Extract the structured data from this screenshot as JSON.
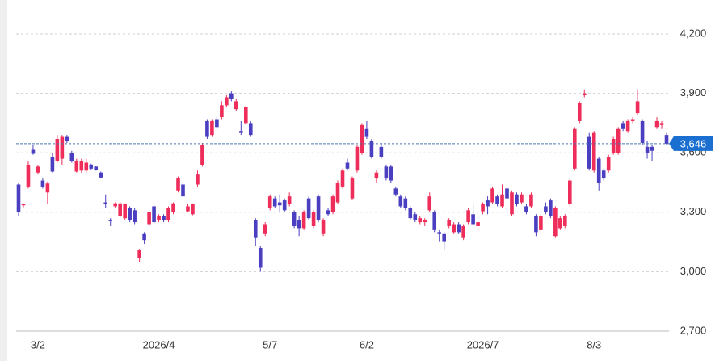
{
  "chart_data": {
    "type": "candlestick",
    "up_color": "#ee2d5a",
    "down_color": "#4a3fc0",
    "ylim": [
      2700,
      4200
    ],
    "yticks": [
      {
        "value": 2700,
        "label": "2,700"
      },
      {
        "value": 3000,
        "label": "3,000"
      },
      {
        "value": 3300,
        "label": "3,300"
      },
      {
        "value": 3600,
        "label": "3,600"
      },
      {
        "value": 3900,
        "label": "3,900"
      },
      {
        "value": 4200,
        "label": "4,200"
      }
    ],
    "grid": true,
    "last_price": {
      "value": 3646,
      "label": "3,646"
    },
    "categories": [
      null,
      null,
      null,
      null,
      "3/2",
      null,
      null,
      null,
      null,
      null,
      null,
      null,
      null,
      null,
      null,
      null,
      null,
      null,
      null,
      null,
      null,
      null,
      null,
      null,
      null,
      null,
      null,
      null,
      null,
      "2026/4",
      null,
      null,
      null,
      null,
      null,
      null,
      null,
      null,
      null,
      null,
      null,
      null,
      null,
      null,
      null,
      null,
      null,
      null,
      null,
      null,
      null,
      null,
      "5/7",
      null,
      null,
      null,
      null,
      null,
      null,
      null,
      null,
      null,
      null,
      null,
      null,
      null,
      null,
      null,
      null,
      null,
      null,
      null,
      "6/2",
      null,
      null,
      null,
      null,
      null,
      null,
      null,
      null,
      null,
      null,
      null,
      null,
      null,
      null,
      null,
      null,
      null,
      null,
      null,
      null,
      null,
      null,
      null,
      "2026/7",
      null,
      null,
      null,
      null,
      null,
      null,
      null,
      null,
      null,
      null,
      null,
      null,
      null,
      null,
      null,
      null,
      null,
      null,
      null,
      null,
      null,
      null,
      "8/3",
      null,
      null,
      null,
      null,
      null,
      null,
      null,
      null,
      null,
      null,
      null,
      null,
      null,
      null,
      null
    ],
    "candles": [
      [
        3440,
        3450,
        3280,
        3300
      ],
      [
        3335,
        3345,
        3325,
        3340
      ],
      [
        3430,
        3560,
        3420,
        3540
      ],
      [
        3615,
        3640,
        3590,
        3595
      ],
      [
        3500,
        3540,
        3490,
        3530
      ],
      [
        3460,
        3470,
        3420,
        3430
      ],
      [
        3400,
        3455,
        3340,
        3445
      ],
      [
        3580,
        3600,
        3500,
        3505
      ],
      [
        3560,
        3690,
        3550,
        3670
      ],
      [
        3570,
        3690,
        3540,
        3680
      ],
      [
        3680,
        3690,
        3650,
        3660
      ],
      [
        3600,
        3610,
        3550,
        3560
      ],
      [
        3505,
        3570,
        3500,
        3560
      ],
      [
        3510,
        3570,
        3500,
        3560
      ],
      [
        3510,
        3570,
        3500,
        3550
      ],
      [
        3540,
        3545,
        3515,
        3520
      ],
      [
        3530,
        3535,
        3510,
        3515
      ],
      [
        3500,
        3505,
        3470,
        3475
      ],
      [
        3350,
        3390,
        3320,
        3340
      ],
      [
        3260,
        3270,
        3230,
        3255
      ],
      [
        3330,
        3350,
        3320,
        3345
      ],
      [
        3280,
        3350,
        3270,
        3345
      ],
      [
        3270,
        3345,
        3260,
        3340
      ],
      [
        3320,
        3330,
        3250,
        3260
      ],
      [
        3310,
        3320,
        3240,
        3250
      ],
      [
        3070,
        3115,
        3050,
        3110
      ],
      [
        3190,
        3200,
        3140,
        3160
      ],
      [
        3240,
        3310,
        3230,
        3300
      ],
      [
        3330,
        3340,
        3240,
        3250
      ],
      [
        3260,
        3290,
        3250,
        3280
      ],
      [
        3280,
        3290,
        3250,
        3260
      ],
      [
        3260,
        3330,
        3250,
        3320
      ],
      [
        3300,
        3350,
        3290,
        3345
      ],
      [
        3410,
        3480,
        3400,
        3470
      ],
      [
        3440,
        3450,
        3370,
        3380
      ],
      [
        3305,
        3340,
        3300,
        3330
      ],
      [
        3290,
        3345,
        3285,
        3340
      ],
      [
        3440,
        3510,
        3430,
        3490
      ],
      [
        3540,
        3650,
        3530,
        3640
      ],
      [
        3760,
        3770,
        3670,
        3680
      ],
      [
        3690,
        3770,
        3680,
        3760
      ],
      [
        3770,
        3780,
        3720,
        3730
      ],
      [
        3780,
        3860,
        3770,
        3840
      ],
      [
        3840,
        3890,
        3830,
        3880
      ],
      [
        3900,
        3910,
        3860,
        3870
      ],
      [
        3820,
        3870,
        3810,
        3860
      ],
      [
        3710,
        3760,
        3690,
        3700
      ],
      [
        3750,
        3840,
        3740,
        3830
      ],
      [
        3750,
        3760,
        3680,
        3690
      ],
      [
        3260,
        3270,
        3130,
        3170
      ],
      [
        3120,
        3130,
        3000,
        3020
      ],
      [
        3190,
        3250,
        3180,
        3240
      ],
      [
        3320,
        3390,
        3310,
        3380
      ],
      [
        3370,
        3380,
        3320,
        3330
      ],
      [
        3350,
        3390,
        3300,
        3335
      ],
      [
        3360,
        3370,
        3300,
        3310
      ],
      [
        3340,
        3400,
        3330,
        3380
      ],
      [
        3300,
        3310,
        3220,
        3230
      ],
      [
        3260,
        3280,
        3180,
        3220
      ],
      [
        3220,
        3310,
        3210,
        3300
      ],
      [
        3370,
        3380,
        3260,
        3270
      ],
      [
        3230,
        3310,
        3220,
        3300
      ],
      [
        3380,
        3390,
        3250,
        3260
      ],
      [
        3190,
        3270,
        3180,
        3260
      ],
      [
        3310,
        3320,
        3280,
        3290
      ],
      [
        3300,
        3390,
        3290,
        3380
      ],
      [
        3350,
        3460,
        3340,
        3450
      ],
      [
        3430,
        3520,
        3420,
        3510
      ],
      [
        3550,
        3570,
        3510,
        3520
      ],
      [
        3370,
        3480,
        3360,
        3470
      ],
      [
        3510,
        3640,
        3500,
        3630
      ],
      [
        3600,
        3750,
        3590,
        3740
      ],
      [
        3720,
        3760,
        3670,
        3680
      ],
      [
        3660,
        3670,
        3570,
        3580
      ],
      [
        3470,
        3510,
        3450,
        3500
      ],
      [
        3630,
        3650,
        3570,
        3580
      ],
      [
        3530,
        3540,
        3460,
        3470
      ],
      [
        3530,
        3540,
        3450,
        3460
      ],
      [
        3420,
        3430,
        3380,
        3390
      ],
      [
        3380,
        3390,
        3320,
        3330
      ],
      [
        3370,
        3380,
        3310,
        3320
      ],
      [
        3320,
        3330,
        3260,
        3270
      ],
      [
        3290,
        3300,
        3250,
        3260
      ],
      [
        3250,
        3280,
        3240,
        3270
      ],
      [
        3250,
        3270,
        3230,
        3260
      ],
      [
        3310,
        3400,
        3300,
        3380
      ],
      [
        3300,
        3310,
        3200,
        3210
      ],
      [
        3200,
        3210,
        3150,
        3190
      ],
      [
        3190,
        3200,
        3110,
        3150
      ],
      [
        3230,
        3270,
        3220,
        3260
      ],
      [
        3200,
        3250,
        3190,
        3240
      ],
      [
        3240,
        3250,
        3190,
        3200
      ],
      [
        3170,
        3240,
        3160,
        3230
      ],
      [
        3250,
        3320,
        3240,
        3310
      ],
      [
        3290,
        3340,
        3230,
        3240
      ],
      [
        3230,
        3260,
        3200,
        3250
      ],
      [
        3305,
        3350,
        3290,
        3340
      ],
      [
        3360,
        3380,
        3290,
        3330
      ],
      [
        3350,
        3430,
        3340,
        3420
      ],
      [
        3380,
        3390,
        3330,
        3340
      ],
      [
        3330,
        3440,
        3320,
        3390
      ],
      [
        3420,
        3440,
        3360,
        3370
      ],
      [
        3290,
        3410,
        3280,
        3400
      ],
      [
        3390,
        3400,
        3330,
        3340
      ],
      [
        3350,
        3400,
        3340,
        3390
      ],
      [
        3330,
        3340,
        3290,
        3300
      ],
      [
        3330,
        3400,
        3320,
        3390
      ],
      [
        3280,
        3290,
        3180,
        3200
      ],
      [
        3210,
        3290,
        3200,
        3280
      ],
      [
        3330,
        3350,
        3290,
        3300
      ],
      [
        3360,
        3370,
        3270,
        3280
      ],
      [
        3180,
        3330,
        3170,
        3320
      ],
      [
        3220,
        3280,
        3210,
        3270
      ],
      [
        3230,
        3290,
        3220,
        3280
      ],
      [
        3340,
        3470,
        3330,
        3460
      ],
      [
        3520,
        3730,
        3510,
        3720
      ],
      [
        3760,
        3860,
        3750,
        3850
      ],
      [
        3890,
        3920,
        3880,
        3900
      ],
      [
        3680,
        3700,
        3510,
        3520
      ],
      [
        3510,
        3710,
        3500,
        3700
      ],
      [
        3570,
        3580,
        3410,
        3450
      ],
      [
        3510,
        3520,
        3460,
        3470
      ],
      [
        3510,
        3590,
        3500,
        3580
      ],
      [
        3600,
        3680,
        3590,
        3670
      ],
      [
        3600,
        3730,
        3590,
        3720
      ],
      [
        3750,
        3760,
        3710,
        3720
      ],
      [
        3710,
        3770,
        3700,
        3760
      ],
      [
        3760,
        3780,
        3750,
        3770
      ],
      [
        3800,
        3920,
        3790,
        3860
      ],
      [
        3760,
        3770,
        3640,
        3650
      ],
      [
        3630,
        3660,
        3570,
        3600
      ],
      [
        3630,
        3640,
        3560,
        3610
      ],
      [
        3730,
        3780,
        3720,
        3760
      ],
      [
        3740,
        3760,
        3720,
        3750
      ],
      [
        3690,
        3700,
        3640,
        3646
      ]
    ]
  }
}
